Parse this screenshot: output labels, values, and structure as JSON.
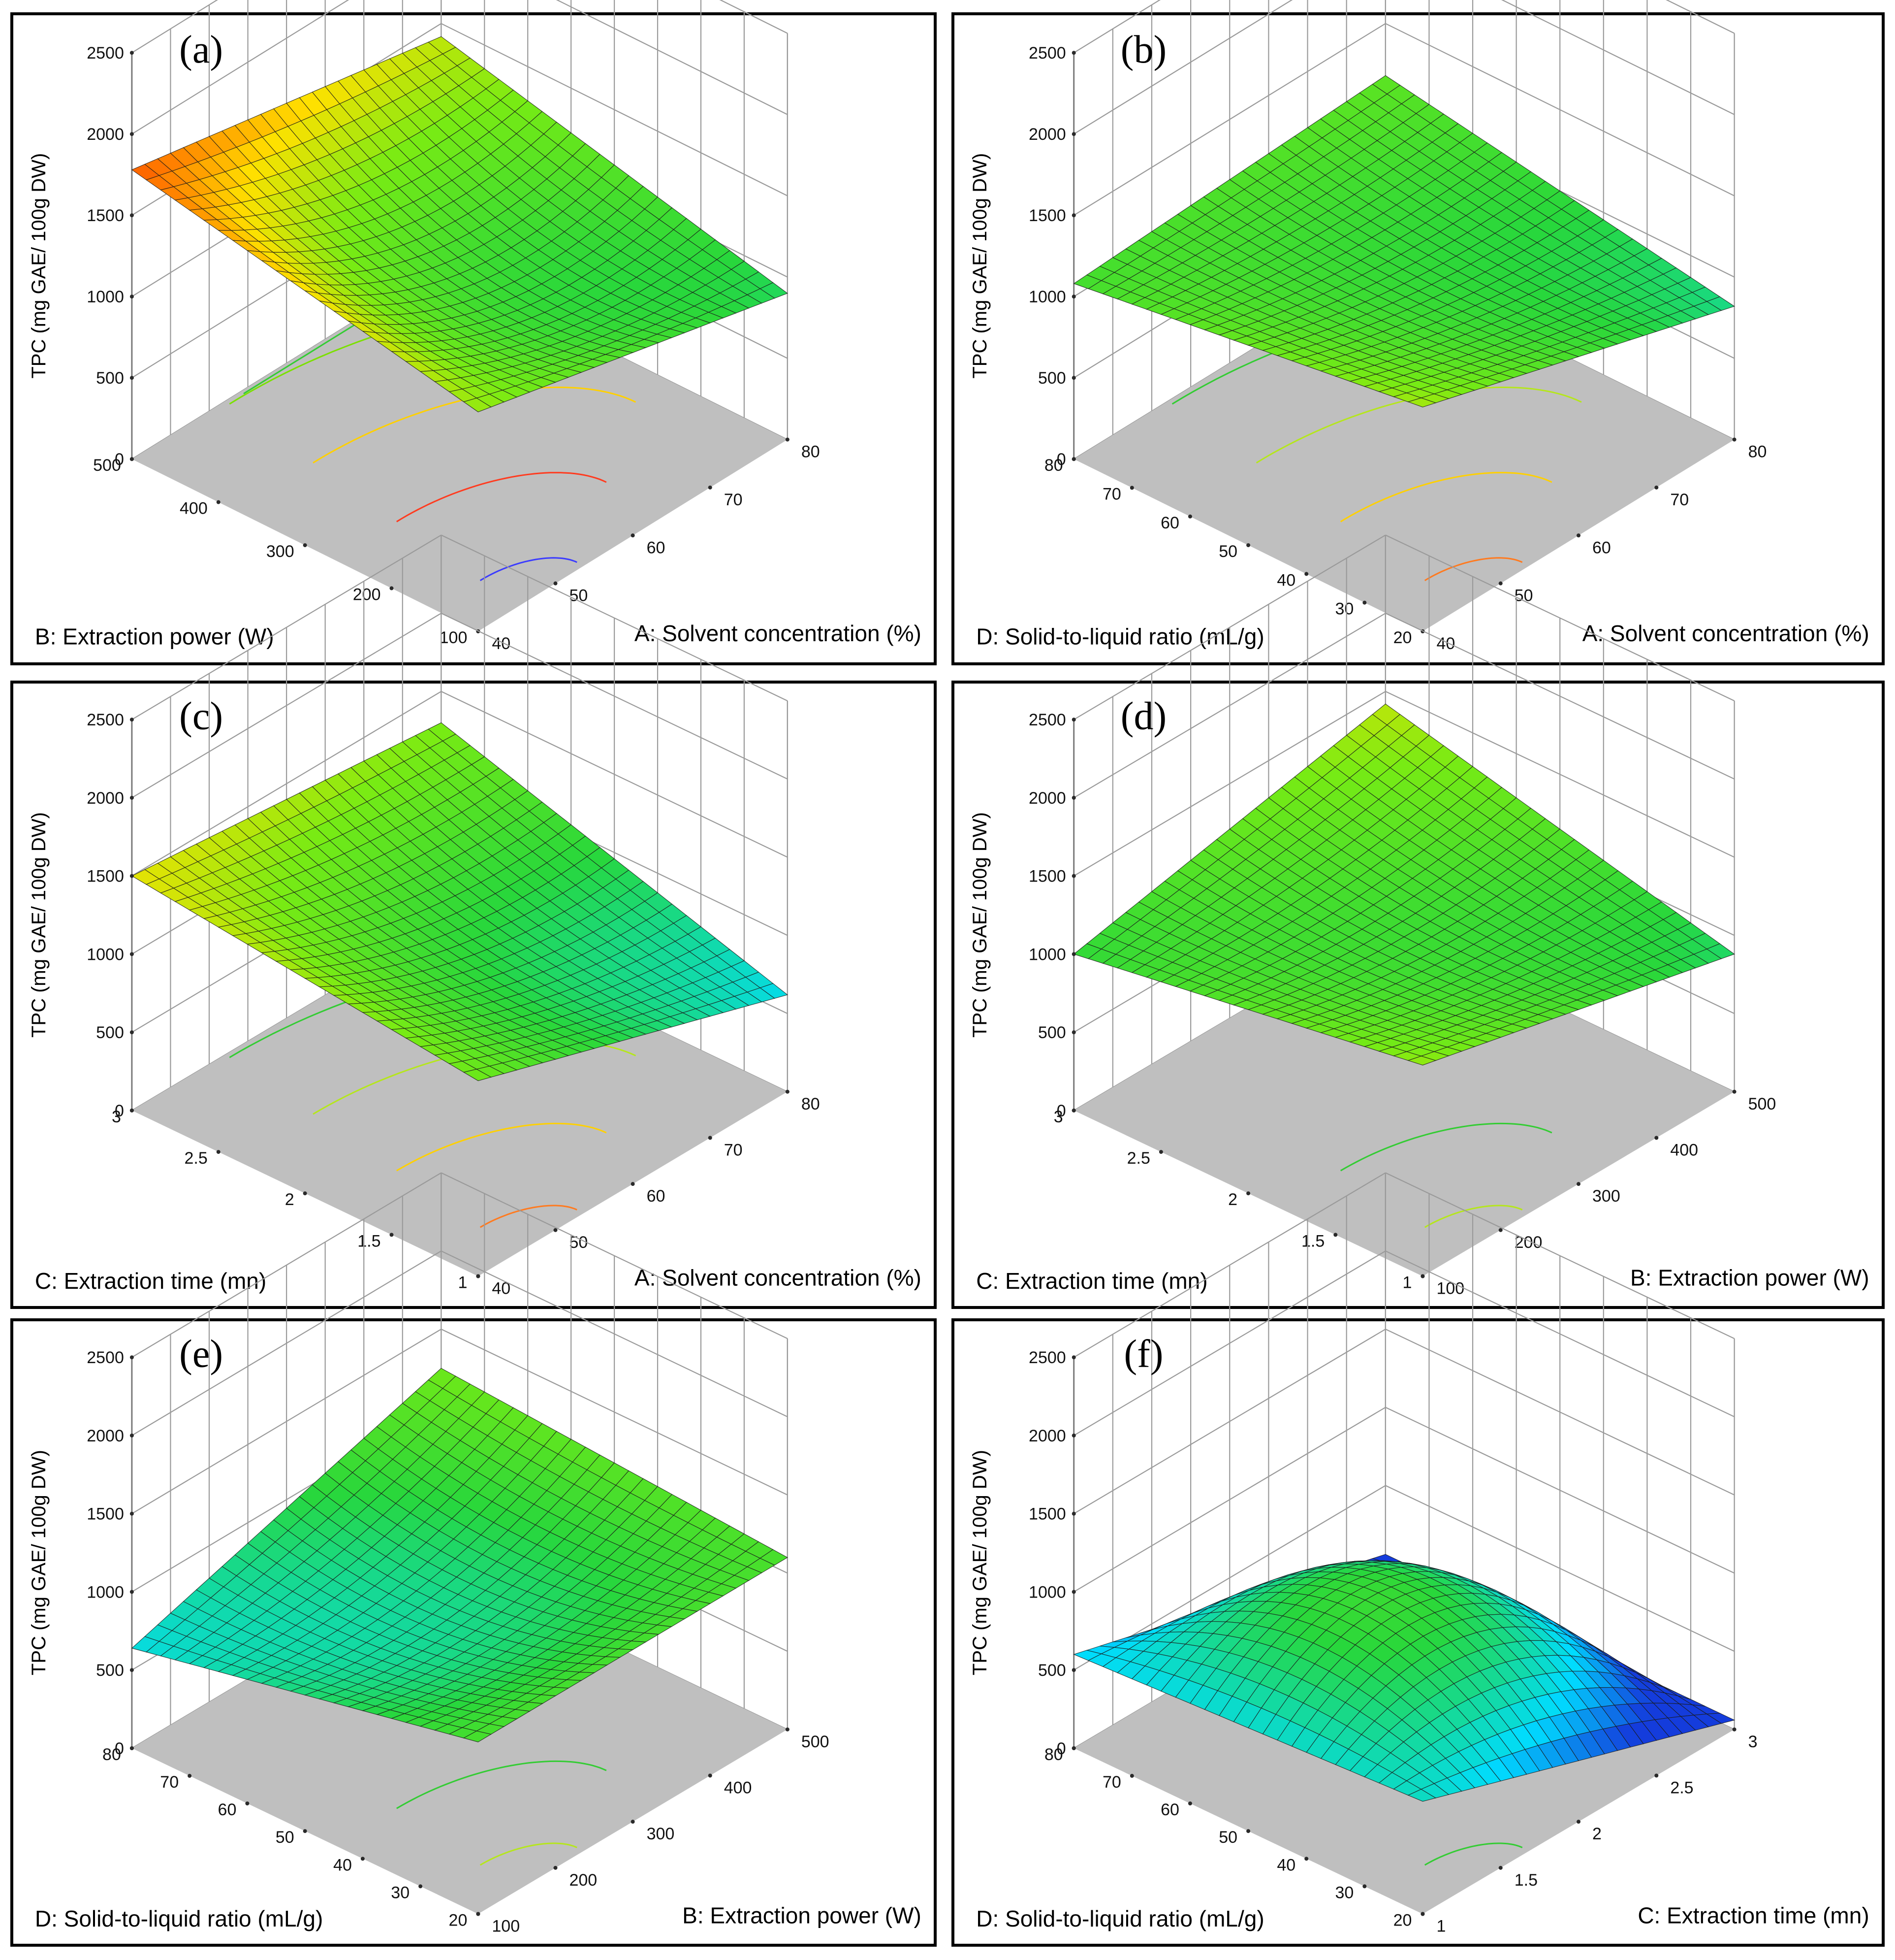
{
  "figure": {
    "z_axis_title": "TPC (mg GAE/ 100g DW)",
    "z_ticks": [
      "0",
      "500",
      "1000",
      "1500",
      "2000",
      "2500"
    ]
  },
  "chart_data": [
    {
      "type": "surface3d",
      "panel_label": "(a)",
      "zlabel": "TPC (mg GAE/ 100g DW)",
      "zlim": [
        0,
        2500
      ],
      "right_axis": {
        "title": "A: Solvent concentration (%)",
        "range": [
          40,
          80
        ],
        "ticks": [
          "40",
          "50",
          "60",
          "70",
          "80"
        ]
      },
      "left_axis": {
        "title": "B: Extraction power (W)",
        "range": [
          100,
          500
        ],
        "ticks": [
          "100",
          "200",
          "300",
          "400",
          "500"
        ]
      },
      "surface_corners": {
        "left_high_right_low": 1780,
        "left_high_right_high": 1420,
        "left_low_right_low": 1350,
        "left_low_right_high": 900
      },
      "surface_center": 1080,
      "contour_colors": [
        "#3b3bff",
        "#ff3b1f",
        "#ffd000",
        "#7be000",
        "#33cc33"
      ]
    },
    {
      "type": "surface3d",
      "panel_label": "(b)",
      "zlabel": "TPC (mg GAE/ 100g DW)",
      "zlim": [
        0,
        2500
      ],
      "right_axis": {
        "title": "A: Solvent concentration (%)",
        "range": [
          40,
          80
        ],
        "ticks": [
          "40",
          "50",
          "60",
          "70",
          "80"
        ]
      },
      "left_axis": {
        "title": "D: Solid-to-liquid ratio (mL/g)",
        "range": [
          20,
          80
        ],
        "ticks": [
          "20",
          "30",
          "40",
          "50",
          "60",
          "70",
          "80"
        ]
      },
      "surface_corners": {
        "left_high_right_low": 1080,
        "left_high_right_high": 1180,
        "left_low_right_low": 1380,
        "left_low_right_high": 820
      },
      "surface_center": 1020,
      "contour_colors": [
        "#ff7a1f",
        "#ffd000",
        "#b5e61d",
        "#33cc33"
      ]
    },
    {
      "type": "surface3d",
      "panel_label": "(c)",
      "zlabel": "TPC (mg GAE/ 100g DW)",
      "zlim": [
        0,
        2500
      ],
      "right_axis": {
        "title": "A: Solvent concentration (%)",
        "range": [
          40,
          80
        ],
        "ticks": [
          "40",
          "50",
          "60",
          "70",
          "80"
        ]
      },
      "left_axis": {
        "title": "C: Extraction time (mn)",
        "range": [
          1,
          3
        ],
        "ticks": [
          "1",
          "1.5",
          "2",
          "2.5",
          "3"
        ]
      },
      "surface_corners": {
        "left_high_right_low": 1500,
        "left_high_right_high": 1300,
        "left_low_right_low": 1250,
        "left_low_right_high": 620
      },
      "surface_center": 1000,
      "contour_colors": [
        "#ff7a1f",
        "#ffd000",
        "#b5e61d",
        "#33cc33"
      ]
    },
    {
      "type": "surface3d",
      "panel_label": "(d)",
      "zlabel": "TPC (mg GAE/ 100g DW)",
      "zlim": [
        0,
        2500
      ],
      "right_axis": {
        "title": "B: Extraction power (W)",
        "range": [
          100,
          500
        ],
        "ticks": [
          "100",
          "200",
          "300",
          "400",
          "500"
        ]
      },
      "left_axis": {
        "title": "C: Extraction time (mn)",
        "range": [
          1,
          3
        ],
        "ticks": [
          "1",
          "1.5",
          "2",
          "2.5",
          "3"
        ]
      },
      "surface_corners": {
        "left_high_right_low": 1000,
        "left_high_right_high": 1420,
        "left_low_right_low": 1350,
        "left_low_right_high": 880
      },
      "surface_center": 1050,
      "contour_colors": [
        "#b5e61d",
        "#33cc33"
      ]
    },
    {
      "type": "surface3d",
      "panel_label": "(e)",
      "zlabel": "TPC (mg GAE/ 100g DW)",
      "zlim": [
        0,
        2500
      ],
      "right_axis": {
        "title": "B: Extraction power (W)",
        "range": [
          100,
          500
        ],
        "ticks": [
          "100",
          "200",
          "300",
          "400",
          "500"
        ]
      },
      "left_axis": {
        "title": "D: Solid-to-liquid ratio (mL/g)",
        "range": [
          20,
          80
        ],
        "ticks": [
          "20",
          "30",
          "40",
          "50",
          "60",
          "70",
          "80"
        ]
      },
      "surface_corners": {
        "left_high_right_low": 640,
        "left_high_right_high": 1250,
        "left_low_right_low": 1100,
        "left_low_right_high": 1100
      },
      "surface_center": 820,
      "contour_colors": [
        "#b5e61d",
        "#33cc33"
      ]
    },
    {
      "type": "surface3d",
      "panel_label": "(f)",
      "zlabel": "TPC (mg GAE/ 100g DW)",
      "zlim": [
        0,
        2500
      ],
      "right_axis": {
        "title": "C: Extraction time (mn)",
        "range": [
          1,
          3
        ],
        "ticks": [
          "1",
          "1.5",
          "2",
          "2.5",
          "3"
        ]
      },
      "left_axis": {
        "title": "D: Solid-to-liquid ratio (mL/g)",
        "range": [
          20,
          80
        ],
        "ticks": [
          "20",
          "30",
          "40",
          "50",
          "60",
          "70",
          "80"
        ]
      },
      "surface_corners": {
        "left_high_right_low": 600,
        "left_high_right_high": 60,
        "left_low_right_low": 720,
        "left_low_right_high": 60
      },
      "surface_center": 1000,
      "contour_colors": [
        "#33cc33"
      ]
    }
  ]
}
